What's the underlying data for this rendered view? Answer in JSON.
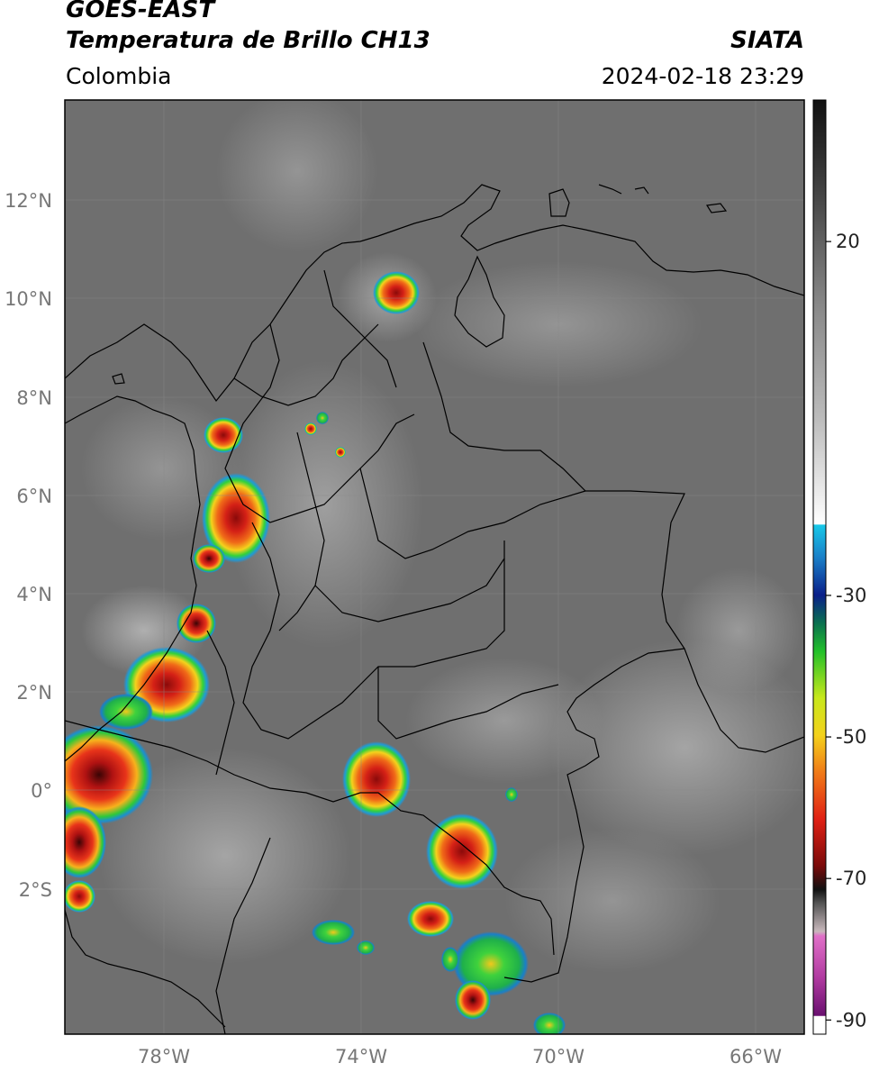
{
  "header": {
    "satellite": "GOES-EAST",
    "product": "Temperatura de Brillo CH13",
    "region": "Colombia",
    "agency": "SIATA",
    "datetime": "2024-02-18 23:29"
  },
  "map": {
    "lat_ticks": [
      "12°N",
      "10°N",
      "8°N",
      "6°N",
      "4°N",
      "2°N",
      "0°",
      "2°S"
    ],
    "lon_ticks": [
      "78°W",
      "74°W",
      "70°W",
      "66°W"
    ],
    "extent": {
      "lon_min": -80,
      "lon_max": -65,
      "lat_min": -5,
      "lat_max": 14
    }
  },
  "colorbar": {
    "ticks": [
      "20",
      "-30",
      "-50",
      "-70",
      "-90"
    ],
    "tick_values": [
      20,
      -30,
      -50,
      -70,
      -90
    ],
    "range": [
      -92,
      40
    ]
  }
}
